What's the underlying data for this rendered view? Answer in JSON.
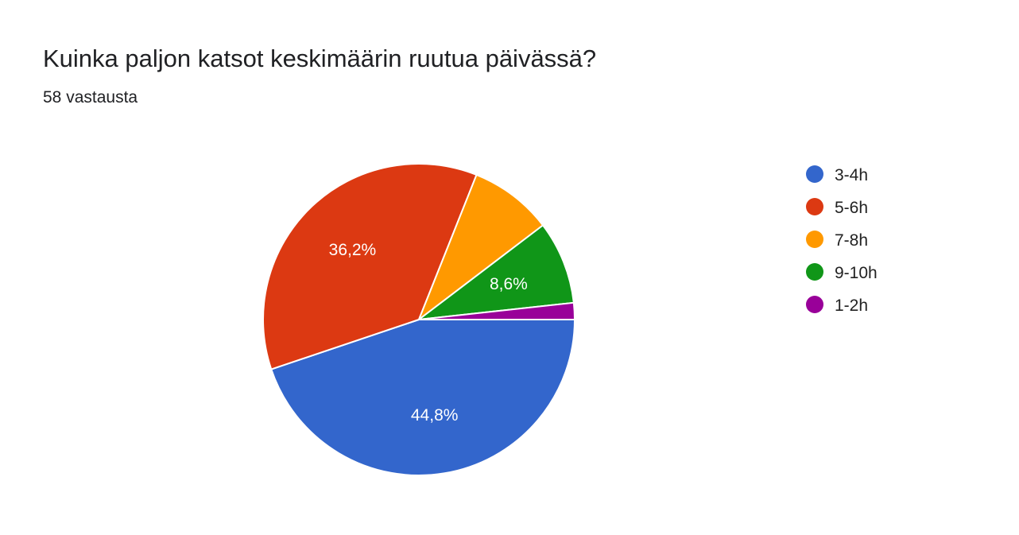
{
  "header": {
    "title": "Kuinka paljon katsot keskimäärin ruutua päivässä?",
    "subtitle": "58 vastausta"
  },
  "chart_data": {
    "type": "pie",
    "title": "Kuinka paljon katsot keskimäärin ruutua päivässä?",
    "total_responses": 58,
    "categories": [
      "3-4h",
      "5-6h",
      "7-8h",
      "9-10h",
      "1-2h"
    ],
    "values": [
      26,
      21,
      5,
      5,
      1
    ],
    "percent_labels": [
      "44,8%",
      "36,2%",
      "",
      "8,6%",
      ""
    ],
    "colors": [
      "#3366cc",
      "#dc3912",
      "#ff9900",
      "#109618",
      "#990099"
    ],
    "legend_position": "right",
    "start_angle": "3 o'clock",
    "direction": "clockwise"
  }
}
